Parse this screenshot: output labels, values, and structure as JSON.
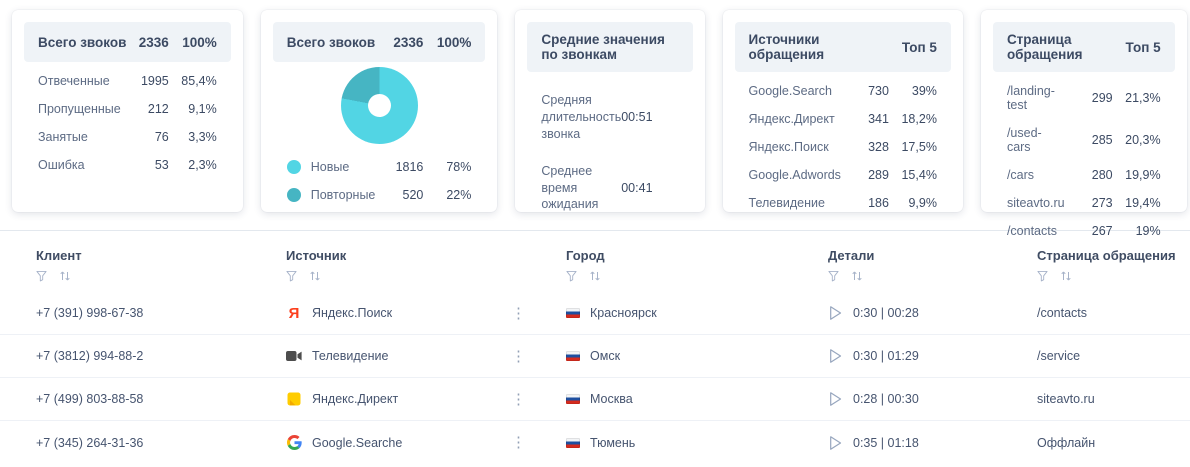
{
  "cards": [
    {
      "title": "Всего звоков",
      "header_value": "2336",
      "header_percent": "100%",
      "rows": [
        {
          "label": "Отвеченные",
          "value": "1995",
          "percent": "85,4%"
        },
        {
          "label": "Пропущенные",
          "value": "212",
          "percent": "9,1%"
        },
        {
          "label": "Занятые",
          "value": "76",
          "percent": "3,3%"
        },
        {
          "label": "Ошибка",
          "value": "53",
          "percent": "2,3%"
        }
      ]
    },
    {
      "title": "Всего звоков",
      "header_value": "2336",
      "header_percent": "100%",
      "legend": [
        {
          "label": "Новые",
          "value": "1816",
          "percent": "78%",
          "color": "#52d5e4"
        },
        {
          "label": "Повторные",
          "value": "520",
          "percent": "22%",
          "color": "#46b5c3"
        }
      ]
    },
    {
      "title": "Средние значения по звонкам",
      "rows": [
        {
          "label": "Средняя длительность звонка",
          "value": "00:51"
        },
        {
          "label": "Среднее время ожидания",
          "value": "00:41"
        }
      ]
    },
    {
      "title": "Источники обращения",
      "badge": "Топ 5",
      "rows": [
        {
          "label": "Google.Search",
          "value": "730",
          "percent": "39%"
        },
        {
          "label": "Яндекс.Директ",
          "value": "341",
          "percent": "18,2%"
        },
        {
          "label": "Яндекс.Поиск",
          "value": "328",
          "percent": "17,5%"
        },
        {
          "label": "Google.Adwords",
          "value": "289",
          "percent": "15,4%"
        },
        {
          "label": "Телевидение",
          "value": "186",
          "percent": "9,9%"
        }
      ]
    },
    {
      "title": "Страница обращения",
      "badge": "Топ 5",
      "rows": [
        {
          "label": "/landing-test",
          "value": "299",
          "percent": "21,3%"
        },
        {
          "label": "/used-cars",
          "value": "285",
          "percent": "20,3%"
        },
        {
          "label": "/cars",
          "value": "280",
          "percent": "19,9%"
        },
        {
          "label": "siteavto.ru",
          "value": "273",
          "percent": "19,4%"
        },
        {
          "label": "/contacts",
          "value": "267",
          "percent": "19%"
        }
      ]
    }
  ],
  "chart_data": {
    "type": "pie",
    "title": "Всего звоков",
    "total": 2336,
    "categories": [
      "Новые",
      "Повторные"
    ],
    "values": [
      1816,
      520
    ],
    "percents": [
      78,
      22
    ],
    "colors": [
      "#52d5e4",
      "#46b5c3"
    ],
    "donut_hole_ratio": 0.3,
    "legend_position": "bottom"
  },
  "table": {
    "columns": [
      {
        "label": "Клиент"
      },
      {
        "label": "Источник"
      },
      {
        "label": "Город"
      },
      {
        "label": "Детали"
      },
      {
        "label": "Страница обращения"
      }
    ],
    "rows": [
      {
        "client": "+7 (391) 998-67-38",
        "source_icon": "yandex-icon",
        "source": "Яндекс.Поиск",
        "city": "Красноярск",
        "details": "0:30 | 00:28",
        "page": "/contacts"
      },
      {
        "client": "+7 (3812) 994-88-2",
        "source_icon": "tv-icon",
        "source": "Телевидение",
        "city": "Омск",
        "details": "0:30 | 01:29",
        "page": "/service"
      },
      {
        "client": "+7 (499) 803-88-58",
        "source_icon": "yandex-direct-icon",
        "source": "Яндекс.Директ",
        "city": "Москва",
        "details": "0:28 | 00:30",
        "page": "siteavto.ru"
      },
      {
        "client": "+7 (345) 264-31-36",
        "source_icon": "google-icon",
        "source": "Google.Searche",
        "city": "Тюмень",
        "details": "0:35 | 01:18",
        "page": "Оффлайн"
      }
    ]
  }
}
